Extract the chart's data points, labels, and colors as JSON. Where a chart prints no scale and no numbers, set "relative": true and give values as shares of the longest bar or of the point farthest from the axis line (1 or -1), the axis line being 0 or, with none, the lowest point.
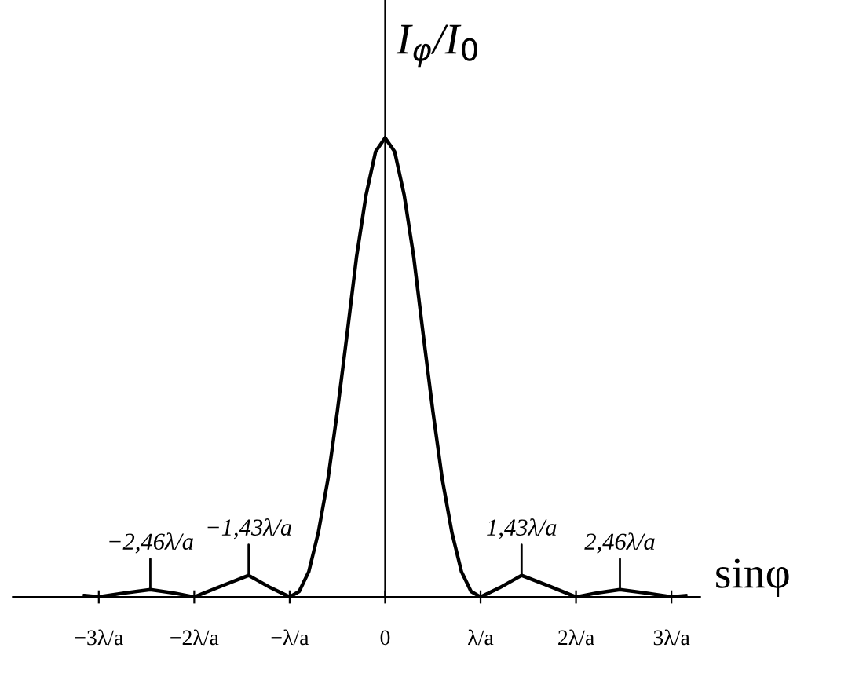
{
  "chart_data": {
    "type": "line",
    "relative": true,
    "ylabel": "I$_{φ}$/I$_{0}$",
    "xlabel": "sinφ",
    "xlim": [
      -3.9,
      3.3
    ],
    "xticks": [
      {
        "value": -3,
        "label": "−3λ/a"
      },
      {
        "value": -2,
        "label": "−2λ/a"
      },
      {
        "value": -1,
        "label": "−λ/a"
      },
      0,
      {
        "value": 1,
        "label": "λ/a"
      },
      {
        "value": 2,
        "label": "2λ/a"
      },
      {
        "value": 3,
        "label": "3λ/a"
      }
    ],
    "legend": false,
    "series": [
      {
        "color": "#000000",
        "x": [
          -3.15,
          -3.0,
          -2.75,
          -2.46,
          -2.2,
          -2.0,
          -1.7,
          -1.43,
          -1.2,
          -1.0,
          -0.9,
          -0.8,
          -0.7,
          -0.6,
          -0.5,
          -0.4,
          -0.3,
          -0.2,
          -0.1,
          0,
          0.1,
          0.2,
          0.3,
          0.4,
          0.5,
          0.6,
          0.7,
          0.8,
          0.9,
          1.0,
          1.2,
          1.43,
          1.7,
          2.0,
          2.2,
          2.46,
          2.75,
          3.0,
          3.15
        ],
        "values": [
          0.003,
          0,
          0.008,
          0.016,
          0.008,
          0,
          0.025,
          0.047,
          0.02,
          0,
          0.012,
          0.055,
          0.14,
          0.255,
          0.405,
          0.57,
          0.74,
          0.875,
          0.97,
          1,
          0.97,
          0.875,
          0.74,
          0.57,
          0.405,
          0.255,
          0.14,
          0.055,
          0.012,
          0,
          0.02,
          0.047,
          0.025,
          0,
          0.008,
          0.016,
          0.008,
          0,
          0.003
        ]
      }
    ],
    "annotations": [
      {
        "text": "−2,46λ/a",
        "x": -2.46,
        "y": 0.016
      },
      {
        "text": "−1,43λ/a",
        "x": -1.43,
        "y": 0.047
      },
      {
        "text": "1,43λ/a",
        "x": 1.43,
        "y": 0.047
      },
      {
        "text": "2,46λ/a",
        "x": 2.46,
        "y": 0.016
      }
    ]
  }
}
